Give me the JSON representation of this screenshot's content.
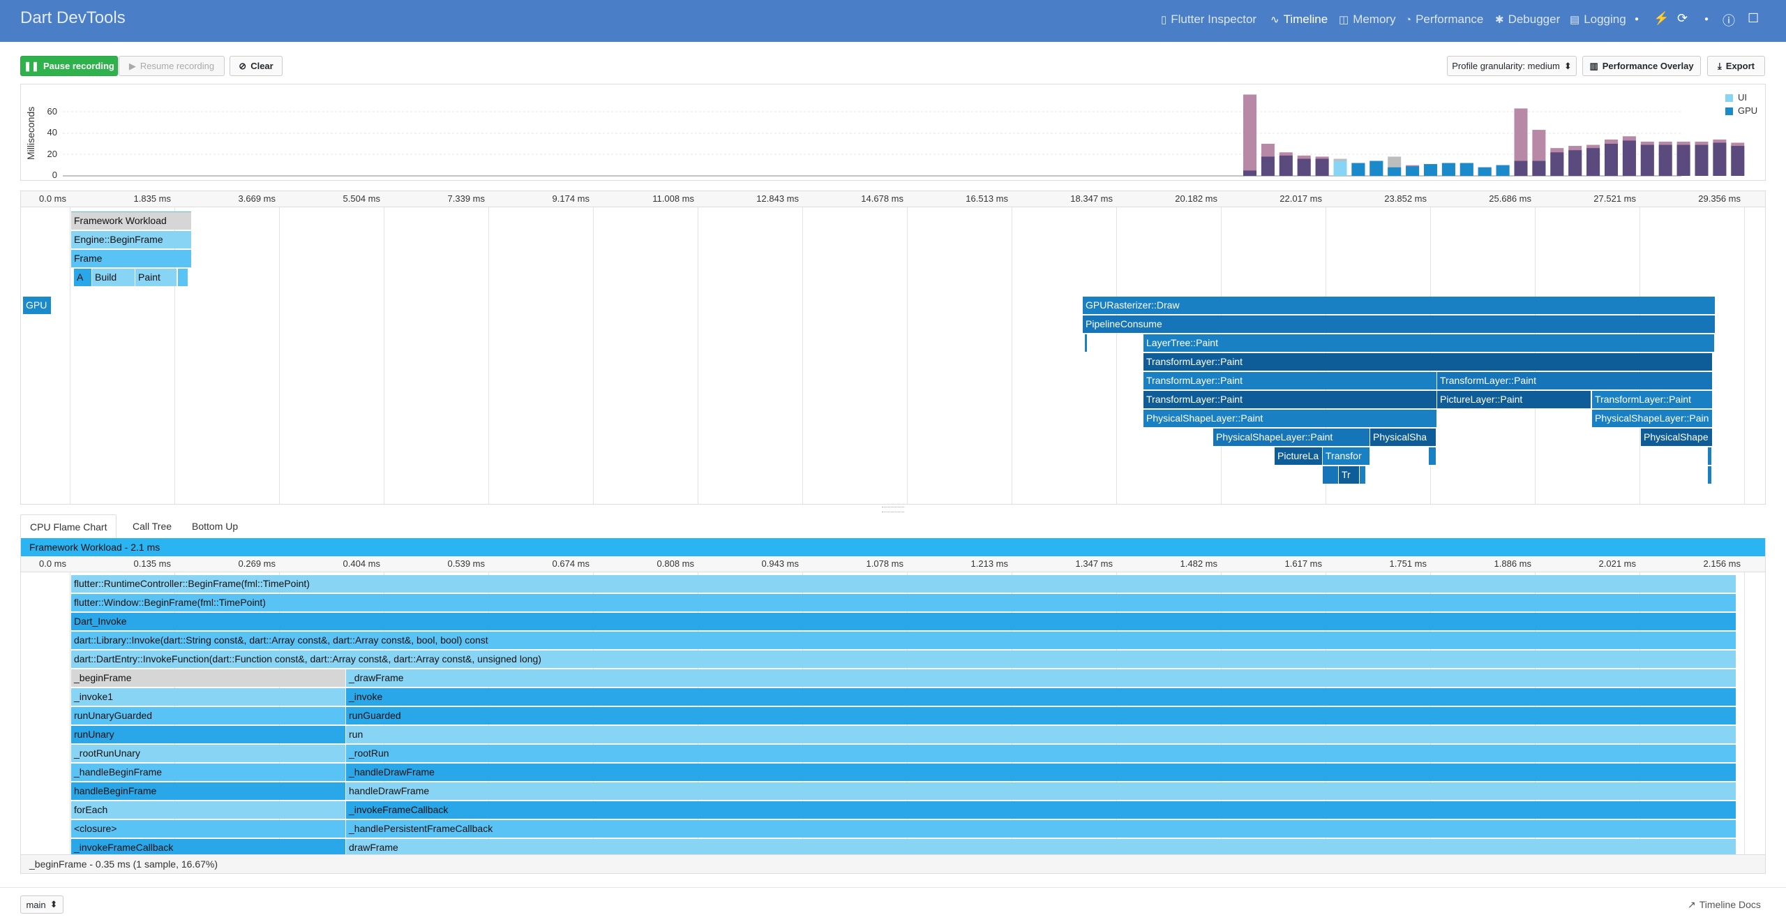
{
  "app": {
    "title": "Dart DevTools"
  },
  "nav": [
    {
      "label": "Flutter Inspector",
      "icon": "phone-icon"
    },
    {
      "label": "Timeline",
      "icon": "pulse-icon",
      "active": true
    },
    {
      "label": "Memory",
      "icon": "memory-icon"
    },
    {
      "label": "Performance",
      "icon": "gauge-icon"
    },
    {
      "label": "Debugger",
      "icon": "bug-icon"
    },
    {
      "label": "Logging",
      "icon": "logging-icon"
    }
  ],
  "toolbar": {
    "pause": "Pause recording",
    "resume": "Resume recording",
    "clear": "Clear",
    "granularity": "Profile granularity: medium",
    "overlay": "Performance Overlay",
    "export": "Export"
  },
  "overview": {
    "ylabel": "Milliseconds",
    "yticks": [
      "60",
      "40",
      "20",
      "0"
    ],
    "legend": [
      {
        "label": "UI",
        "color": "#88d4f5"
      },
      {
        "label": "GPU",
        "color": "#1a8acb"
      }
    ]
  },
  "chart_data": {
    "type": "bar",
    "ylabel": "Milliseconds",
    "ylim": [
      0,
      80
    ],
    "series": [
      {
        "name": "UI",
        "values": [
          76,
          30,
          22,
          19,
          18,
          16,
          12,
          14,
          18,
          10,
          11,
          12,
          12,
          8,
          10,
          63,
          43,
          26,
          28,
          29,
          34,
          37,
          32,
          32,
          32,
          32,
          34,
          31
        ]
      },
      {
        "name": "GPU",
        "values": [
          5,
          18,
          19,
          16,
          16,
          14,
          12,
          14,
          8,
          9,
          11,
          12,
          12,
          8,
          10,
          14,
          14,
          22,
          24,
          26,
          30,
          33,
          29,
          29,
          29,
          29,
          31,
          28
        ]
      }
    ]
  },
  "timeline": {
    "ticks": [
      "0.0 ms",
      "1.835 ms",
      "3.669 ms",
      "5.504 ms",
      "7.339 ms",
      "9.174 ms",
      "11.008 ms",
      "12.843 ms",
      "14.678 ms",
      "16.513 ms",
      "18.347 ms",
      "20.182 ms",
      "22.017 ms",
      "23.852 ms",
      "25.686 ms",
      "27.521 ms",
      "29.356 ms"
    ],
    "gpu_label": "GPU",
    "ui_events": [
      "Framework Workload",
      "Engine::BeginFrame",
      "Frame",
      "A",
      "Build",
      "Paint"
    ],
    "gpu_events": [
      "GPURasterizer::Draw",
      "PipelineConsume",
      "LayerTree::Paint",
      "TransformLayer::Paint",
      "TransformLayer::Paint",
      "TransformLayer::Paint",
      "TransformLayer::Paint",
      "PictureLayer::Paint",
      "TransformLayer::Paint",
      "PhysicalShapeLayer::Paint",
      "PhysicalShapeLayer::Pain",
      "PhysicalShapeLayer::Paint",
      "PhysicalSha",
      "PhysicalShape",
      "PictureLa",
      "Transfor",
      "Tr"
    ]
  },
  "tabs": [
    "CPU Flame Chart",
    "Call Tree",
    "Bottom Up"
  ],
  "flame": {
    "header": "Framework Workload - 2.1 ms",
    "ticks": [
      "0.0 ms",
      "0.135 ms",
      "0.269 ms",
      "0.404 ms",
      "0.539 ms",
      "0.674 ms",
      "0.808 ms",
      "0.943 ms",
      "1.078 ms",
      "1.213 ms",
      "1.347 ms",
      "1.482 ms",
      "1.617 ms",
      "1.751 ms",
      "1.886 ms",
      "2.021 ms",
      "2.156 ms"
    ],
    "full_rows": [
      "flutter::RuntimeController::BeginFrame(fml::TimePoint)",
      "flutter::Window::BeginFrame(fml::TimePoint)",
      "Dart_Invoke",
      "dart::Library::Invoke(dart::String const&, dart::Array const&, dart::Array const&, bool, bool) const",
      "dart::DartEntry::InvokeFunction(dart::Function const&, dart::Array const&, dart::Array const&, unsigned long)"
    ],
    "left_col": [
      "_beginFrame",
      "_invoke1",
      "runUnaryGuarded",
      "runUnary",
      "_rootRunUnary",
      "_handleBeginFrame",
      "handleBeginFrame",
      "forEach",
      "<closure>",
      "_invokeFrameCallback"
    ],
    "right_col": [
      "_drawFrame",
      "_invoke",
      "runGuarded",
      "run",
      "_rootRun",
      "_handleDrawFrame",
      "handleDrawFrame",
      "_invokeFrameCallback",
      "_handlePersistentFrameCallback",
      "drawFrame"
    ],
    "status": "_beginFrame - 0.35 ms (1 sample, 16.67%)"
  },
  "footer": {
    "isolate": "main",
    "docs": "Timeline Docs"
  }
}
